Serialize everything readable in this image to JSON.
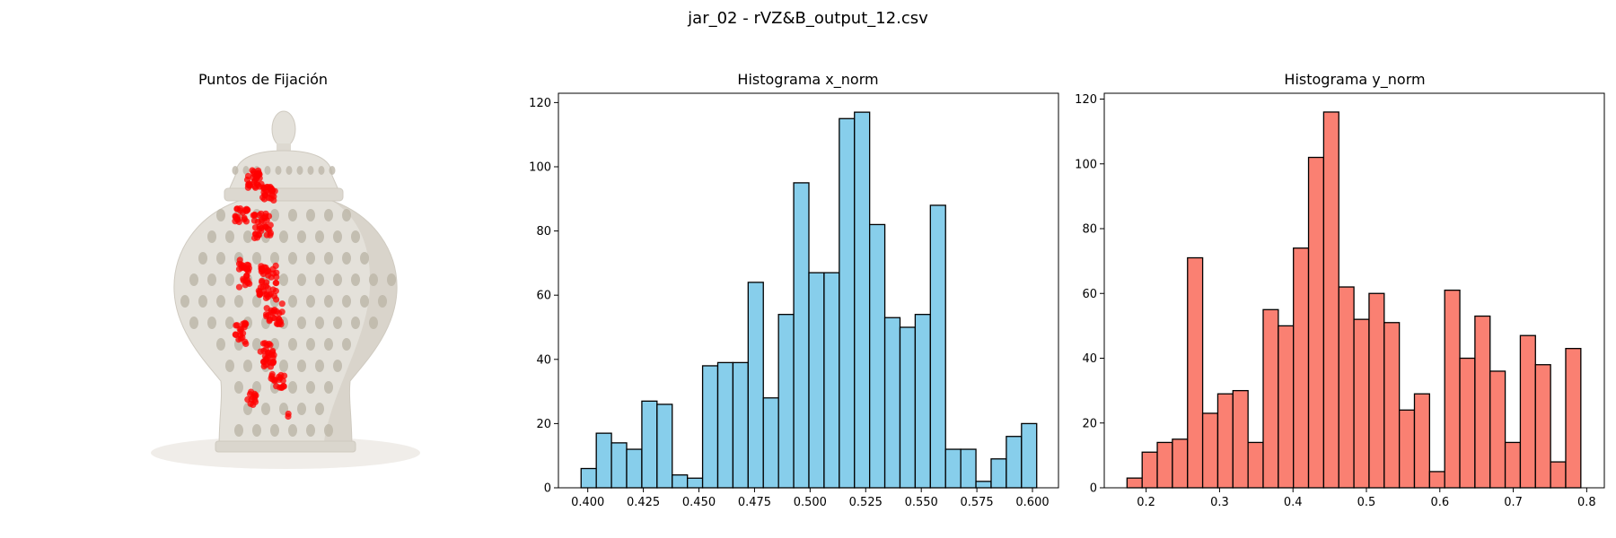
{
  "figure": {
    "title": "jar_02 - rVZ&B_output_12.csv"
  },
  "panels": {
    "image": {
      "title": "Puntos de Fijación"
    },
    "hist_x": {
      "title": "Histograma x_norm"
    },
    "hist_y": {
      "title": "Histograma y_norm"
    }
  },
  "colors": {
    "hist_x_fill": "#87ceeb",
    "hist_y_fill": "#fa8072",
    "edge": "#000000",
    "fixation": "#ff0000",
    "jar_body": "#e4e1da",
    "jar_shadow": "#cfcac0",
    "jar_holes": "#bdb7a9"
  },
  "chart_data": [
    {
      "type": "bar",
      "title": "Histograma x_norm",
      "xlabel": "",
      "ylabel": "",
      "bin_start": 0.397,
      "bin_width": 0.00683,
      "values": [
        6,
        17,
        14,
        12,
        27,
        26,
        4,
        3,
        38,
        39,
        39,
        64,
        28,
        54,
        95,
        67,
        67,
        115,
        117,
        82,
        53,
        50,
        54,
        88,
        12,
        12,
        2,
        9,
        16,
        20
      ],
      "xlim": [
        0.3868,
        0.6117
      ],
      "ylim": [
        0,
        122.9
      ],
      "xticks": [
        0.4,
        0.425,
        0.45,
        0.475,
        0.5,
        0.525,
        0.55,
        0.575,
        0.6
      ],
      "xtick_labels": [
        "0.400",
        "0.425",
        "0.450",
        "0.475",
        "0.500",
        "0.525",
        "0.550",
        "0.575",
        "0.600"
      ],
      "yticks": [
        0,
        20,
        40,
        60,
        80,
        100,
        120
      ],
      "ytick_labels": [
        "0",
        "20",
        "40",
        "60",
        "80",
        "100",
        "120"
      ],
      "grid": false
    },
    {
      "type": "bar",
      "title": "Histograma y_norm",
      "xlabel": "",
      "ylabel": "",
      "bin_start": 0.174,
      "bin_width": 0.0206,
      "values": [
        3,
        11,
        14,
        15,
        71,
        23,
        29,
        30,
        14,
        55,
        50,
        74,
        102,
        116,
        62,
        52,
        60,
        51,
        24,
        29,
        5,
        61,
        40,
        53,
        36,
        14,
        47,
        38,
        8,
        43
      ],
      "xlim": [
        0.143,
        0.824
      ],
      "ylim": [
        0,
        121.8
      ],
      "xticks": [
        0.2,
        0.3,
        0.4,
        0.5,
        0.6,
        0.7,
        0.8
      ],
      "xtick_labels": [
        "0.2",
        "0.3",
        "0.4",
        "0.5",
        "0.6",
        "0.7",
        "0.8"
      ],
      "yticks": [
        0,
        20,
        40,
        60,
        80,
        100,
        120
      ],
      "ytick_labels": [
        "0",
        "20",
        "40",
        "60",
        "80",
        "100",
        "120"
      ],
      "grid": false
    }
  ]
}
